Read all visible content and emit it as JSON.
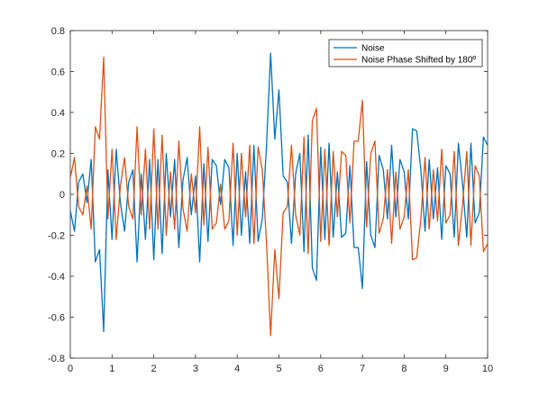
{
  "chart_data": {
    "type": "line",
    "title": "",
    "xlabel": "",
    "ylabel": "",
    "xlim": [
      0,
      10
    ],
    "ylim": [
      -0.8,
      0.8
    ],
    "xticks": [
      0,
      1,
      2,
      3,
      4,
      5,
      6,
      7,
      8,
      9,
      10
    ],
    "xtick_labels": [
      "0",
      "1",
      "2",
      "3",
      "4",
      "5",
      "6",
      "7",
      "8",
      "9",
      "10"
    ],
    "yticks": [
      -0.8,
      -0.6,
      -0.4,
      -0.2,
      0,
      0.2,
      0.4,
      0.6,
      0.8
    ],
    "ytick_labels": [
      "-0.8",
      "-0.6",
      "-0.4",
      "-0.2",
      "0",
      "0.2",
      "0.4",
      "0.6",
      "0.8"
    ],
    "grid": false,
    "legend_position": "top-right",
    "x": [
      0,
      0.1,
      0.2,
      0.3,
      0.4,
      0.5,
      0.6,
      0.7,
      0.8,
      0.9,
      1.0,
      1.1,
      1.2,
      1.3,
      1.4,
      1.5,
      1.6,
      1.7,
      1.8,
      1.9,
      2.0,
      2.1,
      2.2,
      2.3,
      2.4,
      2.5,
      2.6,
      2.7,
      2.8,
      2.9,
      3.0,
      3.1,
      3.2,
      3.3,
      3.4,
      3.5,
      3.6,
      3.7,
      3.8,
      3.9,
      4.0,
      4.1,
      4.2,
      4.3,
      4.4,
      4.5,
      4.6,
      4.7,
      4.8,
      4.9,
      5.0,
      5.1,
      5.2,
      5.3,
      5.4,
      5.5,
      5.6,
      5.7,
      5.8,
      5.9,
      6.0,
      6.1,
      6.2,
      6.3,
      6.4,
      6.5,
      6.6,
      6.7,
      6.8,
      6.9,
      7.0,
      7.1,
      7.2,
      7.3,
      7.4,
      7.5,
      7.6,
      7.7,
      7.8,
      7.9,
      8.0,
      8.1,
      8.2,
      8.3,
      8.4,
      8.5,
      8.6,
      8.7,
      8.8,
      8.9,
      9.0,
      9.1,
      9.2,
      9.3,
      9.4,
      9.5,
      9.6,
      9.7,
      9.8,
      9.9,
      10.0
    ],
    "series": [
      {
        "name": "Noise",
        "color": "#0072BD",
        "values": [
          -0.08,
          -0.18,
          0.06,
          0.1,
          -0.04,
          0.17,
          -0.33,
          -0.27,
          -0.67,
          0.12,
          -0.22,
          0.22,
          -0.04,
          -0.18,
          0.06,
          0.12,
          -0.33,
          0.1,
          -0.22,
          0.17,
          -0.32,
          0.17,
          -0.29,
          0.2,
          -0.11,
          0.17,
          -0.26,
          0.07,
          0.18,
          -0.1,
          0.09,
          -0.33,
          0.15,
          -0.23,
          0.17,
          0.14,
          -0.05,
          0.17,
          0.13,
          -0.25,
          0.2,
          -0.2,
          0.11,
          -0.24,
          0.24,
          -0.23,
          -0.12,
          0.23,
          0.69,
          0.27,
          0.51,
          0.09,
          0.06,
          -0.24,
          0.1,
          0.2,
          -0.28,
          0.29,
          -0.36,
          -0.42,
          0.23,
          -0.22,
          0.25,
          -0.21,
          0.11,
          -0.21,
          -0.19,
          0.14,
          -0.26,
          -0.26,
          -0.46,
          0.16,
          -0.2,
          -0.26,
          0.19,
          0.12,
          -0.12,
          0.24,
          -0.11,
          0.17,
          0.11,
          -0.12,
          0.32,
          0.31,
          0.12,
          -0.18,
          0.17,
          -0.12,
          0.13,
          -0.22,
          0.14,
          0.1,
          -0.21,
          0.25,
          0.05,
          -0.21,
          0.25,
          -0.14,
          -0.09,
          0.28,
          0.24
        ]
      },
      {
        "name": "Noise Phase Shifted by 180º",
        "color": "#D95319",
        "values": [
          0.08,
          0.18,
          -0.06,
          -0.1,
          0.04,
          -0.17,
          0.33,
          0.27,
          0.67,
          -0.12,
          0.22,
          -0.22,
          0.04,
          0.18,
          -0.06,
          -0.12,
          0.33,
          -0.1,
          0.22,
          -0.17,
          0.32,
          -0.17,
          0.29,
          -0.2,
          0.11,
          -0.17,
          0.26,
          -0.07,
          -0.18,
          0.1,
          -0.09,
          0.33,
          -0.15,
          0.23,
          -0.17,
          -0.14,
          0.05,
          -0.17,
          -0.13,
          0.25,
          -0.2,
          0.2,
          -0.11,
          0.24,
          -0.24,
          0.23,
          0.12,
          -0.23,
          -0.69,
          -0.27,
          -0.51,
          -0.09,
          -0.06,
          0.24,
          -0.1,
          -0.2,
          0.28,
          -0.29,
          0.36,
          0.42,
          -0.23,
          0.22,
          -0.25,
          0.21,
          -0.11,
          0.21,
          0.19,
          -0.14,
          0.26,
          0.26,
          0.46,
          -0.16,
          0.2,
          0.26,
          -0.19,
          -0.12,
          0.12,
          -0.24,
          0.11,
          -0.17,
          -0.11,
          0.12,
          -0.32,
          -0.31,
          -0.12,
          0.18,
          -0.17,
          0.12,
          -0.13,
          0.22,
          -0.14,
          -0.1,
          0.21,
          -0.25,
          -0.05,
          0.21,
          -0.25,
          0.14,
          0.09,
          -0.28,
          -0.24
        ]
      }
    ]
  }
}
